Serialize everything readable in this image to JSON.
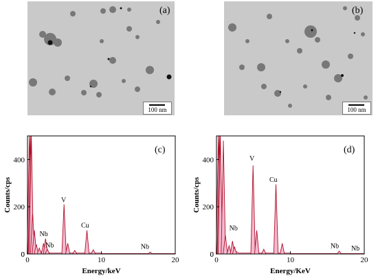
{
  "tem_panels": [
    {
      "label": "(a)",
      "scale_bar": "100 nm"
    },
    {
      "label": "(b)",
      "scale_bar": "100 nm"
    }
  ],
  "chart_data": [
    {
      "type": "bar",
      "panel_label": "(c)",
      "xlabel": "Energy/keV",
      "ylabel": "Counts/cps",
      "xlim": [
        0,
        20
      ],
      "ylim": [
        0,
        500
      ],
      "xticks": [
        0,
        10,
        20
      ],
      "yticks": [
        0,
        200,
        400
      ],
      "color": "#b0102a",
      "fill": "#f3b9cf",
      "peaks": [
        {
          "x": 0.25,
          "y": 500
        },
        {
          "x": 0.4,
          "y": 500
        },
        {
          "x": 0.52,
          "y": 500
        },
        {
          "x": 0.7,
          "y": 170
        },
        {
          "x": 0.93,
          "y": 100
        },
        {
          "x": 1.2,
          "y": 40
        },
        {
          "x": 1.6,
          "y": 25
        },
        {
          "x": 2.17,
          "y": 45
        },
        {
          "x": 2.45,
          "y": 65
        },
        {
          "x": 2.68,
          "y": 20
        },
        {
          "x": 4.95,
          "y": 210
        },
        {
          "x": 5.45,
          "y": 45
        },
        {
          "x": 6.4,
          "y": 15
        },
        {
          "x": 8.05,
          "y": 100
        },
        {
          "x": 8.9,
          "y": 18
        },
        {
          "x": 16.6,
          "y": 8
        }
      ],
      "annotations": [
        {
          "text": "Nb",
          "x": 2.2,
          "y": 75
        },
        {
          "text": "Nb",
          "x": 3.0,
          "y": 28
        },
        {
          "text": "V",
          "x": 4.9,
          "y": 220
        },
        {
          "text": "Cu",
          "x": 7.8,
          "y": 112
        },
        {
          "text": "Nb",
          "x": 15.9,
          "y": 22
        }
      ]
    },
    {
      "type": "bar",
      "panel_label": "(d)",
      "xlabel": "Energy/KeV",
      "ylabel": "Counts/cps",
      "xlim": [
        0,
        20
      ],
      "ylim": [
        0,
        500
      ],
      "xticks": [
        0,
        10,
        20
      ],
      "yticks": [
        0,
        200,
        400
      ],
      "color": "#b0102a",
      "fill": "#f3b9cf",
      "peaks": [
        {
          "x": 0.25,
          "y": 500
        },
        {
          "x": 0.4,
          "y": 500
        },
        {
          "x": 0.52,
          "y": 500
        },
        {
          "x": 0.93,
          "y": 480
        },
        {
          "x": 1.2,
          "y": 80
        },
        {
          "x": 1.7,
          "y": 35
        },
        {
          "x": 2.17,
          "y": 55
        },
        {
          "x": 2.45,
          "y": 30
        },
        {
          "x": 4.95,
          "y": 375
        },
        {
          "x": 5.45,
          "y": 100
        },
        {
          "x": 6.4,
          "y": 20
        },
        {
          "x": 8.05,
          "y": 295
        },
        {
          "x": 8.9,
          "y": 45
        },
        {
          "x": 16.6,
          "y": 12
        }
      ],
      "annotations": [
        {
          "text": "Nb",
          "x": 2.3,
          "y": 100
        },
        {
          "text": "V",
          "x": 4.8,
          "y": 395
        },
        {
          "text": "Cu",
          "x": 7.7,
          "y": 305
        },
        {
          "text": "Nb",
          "x": 16.0,
          "y": 25
        },
        {
          "text": "Nb",
          "x": 18.8,
          "y": 15
        }
      ]
    }
  ]
}
